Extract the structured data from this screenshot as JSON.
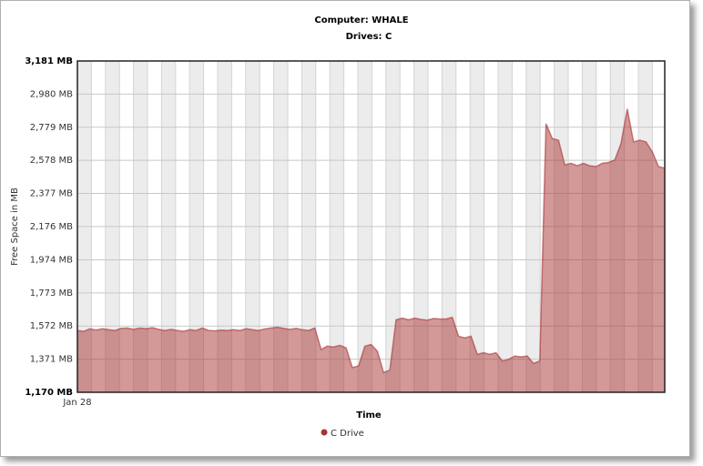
{
  "chart_data": {
    "type": "area",
    "title": "Computer: WHALE",
    "subtitle": "Drives: C",
    "x_label": "Time",
    "y_label": "Free Space in MB",
    "categories": [
      "Jan 28",
      null,
      null,
      null,
      null,
      null,
      null,
      null,
      null,
      null,
      null,
      null,
      null,
      null,
      null,
      null,
      null,
      null,
      null,
      null,
      null,
      null,
      null,
      null,
      null,
      null,
      null,
      null,
      null,
      null,
      null,
      null,
      null,
      null,
      null,
      null,
      null,
      null,
      null,
      null,
      null,
      null,
      null,
      null,
      null,
      null,
      null,
      null,
      null,
      null,
      null,
      null,
      null,
      null,
      null,
      null,
      null,
      null,
      null,
      null,
      null,
      null,
      null,
      null,
      null,
      null,
      null,
      null,
      null,
      null,
      null,
      null,
      null,
      null,
      null,
      null,
      null,
      null,
      null,
      null,
      null,
      null,
      null,
      null,
      null,
      null,
      null,
      null,
      null,
      null,
      null,
      null,
      null,
      null,
      null
    ],
    "series": [
      {
        "name": "C Drive",
        "color": "#a83232",
        "values": [
          1545,
          1540,
          1555,
          1548,
          1556,
          1550,
          1545,
          1558,
          1560,
          1552,
          1560,
          1556,
          1562,
          1552,
          1545,
          1552,
          1545,
          1540,
          1550,
          1545,
          1560,
          1545,
          1543,
          1548,
          1545,
          1550,
          1545,
          1556,
          1550,
          1545,
          1555,
          1560,
          1565,
          1558,
          1552,
          1558,
          1550,
          1545,
          1560,
          1430,
          1450,
          1445,
          1455,
          1440,
          1320,
          1330,
          1450,
          1460,
          1420,
          1290,
          1305,
          1610,
          1620,
          1610,
          1620,
          1612,
          1608,
          1618,
          1615,
          1615,
          1625,
          1510,
          1500,
          1510,
          1400,
          1410,
          1400,
          1410,
          1360,
          1370,
          1390,
          1385,
          1390,
          1345,
          1360,
          2800,
          2710,
          2700,
          2550,
          2560,
          2545,
          2560,
          2545,
          2540,
          2560,
          2565,
          2580,
          2680,
          2890,
          2690,
          2700,
          2690,
          2630,
          2540,
          2530
        ]
      }
    ],
    "ylim": [
      1170,
      3181
    ],
    "yticks": [
      {
        "value": 1170,
        "label": "1,170 MB"
      },
      {
        "value": 1371,
        "label": "1,371 MB"
      },
      {
        "value": 1572,
        "label": "1,572 MB"
      },
      {
        "value": 1773,
        "label": "1,773 MB"
      },
      {
        "value": 1974,
        "label": "1,974 MB"
      },
      {
        "value": 2176,
        "label": "2,176 MB"
      },
      {
        "value": 2377,
        "label": "2,377 MB"
      },
      {
        "value": 2578,
        "label": "2,578 MB"
      },
      {
        "value": 2779,
        "label": "2,779 MB"
      },
      {
        "value": 2980,
        "label": "2,980 MB"
      },
      {
        "value": 3181,
        "label": "3,181 MB"
      }
    ],
    "grid": true,
    "legend": "bottom"
  }
}
